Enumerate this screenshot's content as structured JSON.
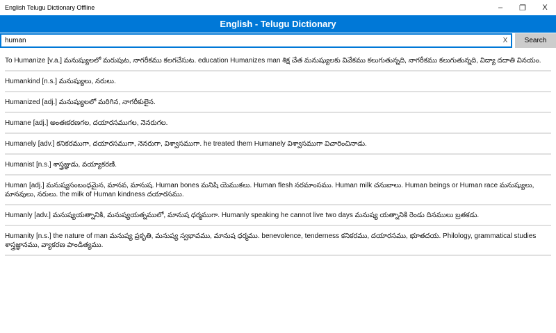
{
  "window": {
    "title": "English Telugu Dictionary Offline",
    "minimize": "–",
    "restore": "❐",
    "close": "X"
  },
  "header": {
    "title": "English - Telugu Dictionary"
  },
  "search": {
    "value": "human",
    "clear": "X",
    "button": "Search"
  },
  "accent": "#0078d7",
  "results": [
    "To Humanize [v.a.] మనుష్యులలో మరుపుట, నాగరీకము కలగచేసుట. education Humanizes man శిక్ష చేత మనుష్యులకు వివేకము కలుగుతున్నది, నాగరీకము కలుగుతున్నది, విద్యా దదాతి వినయం.",
    "Humankind [n.s.] మనుష్యులు, నరులు.",
    "Humanized [adj.] మనుష్యులలో మరిగిన, నాగరీకులైన.",
    "Humane [adj.] అంతఃకరణగల, దయారసముగల, నెనరుగల.",
    "Humanely [adv.] కనికరముగా, దయారసముగా, నెనరుగా, విశ్వాసముగా. he treated them Humanely విశ్వాసముగా విచారించినాడు.",
    "Humanist [n.s.] శాస్త్రజ్ఞుడు, వయ్యాకరణి.",
    "Human [adj.] మనుష్యసంబంధమైన, మానవ, మానుష. Human bones మనిషి యెముకలు. Human flesh నరమాంసము. Human milk చనుబాలు. Human beings or Human race మనుష్యులు, మానవులు, నరులు. the milk of Human kindness దయారసము.",
    "Humanly [adv.] మనుష్యయత్నానికి, మనుష్యయత్నములో, మానుష ధర్మముగా. Humanly speaking he cannot live two days మనుష్య యత్నానికి రెండు దినములు బ్రతకడు.",
    "Humanity [n.s.] the nature of man మనుష్య ప్రకృతి, మనుష్య స్వభావము, మానుష ధర్మము. benevolence, tenderness కనికరము, దయారసము, భూతదయ. Philology, grammatical studies శాస్త్రజ్ఞానము, వ్యాకరణ పాండిత్యము."
  ]
}
